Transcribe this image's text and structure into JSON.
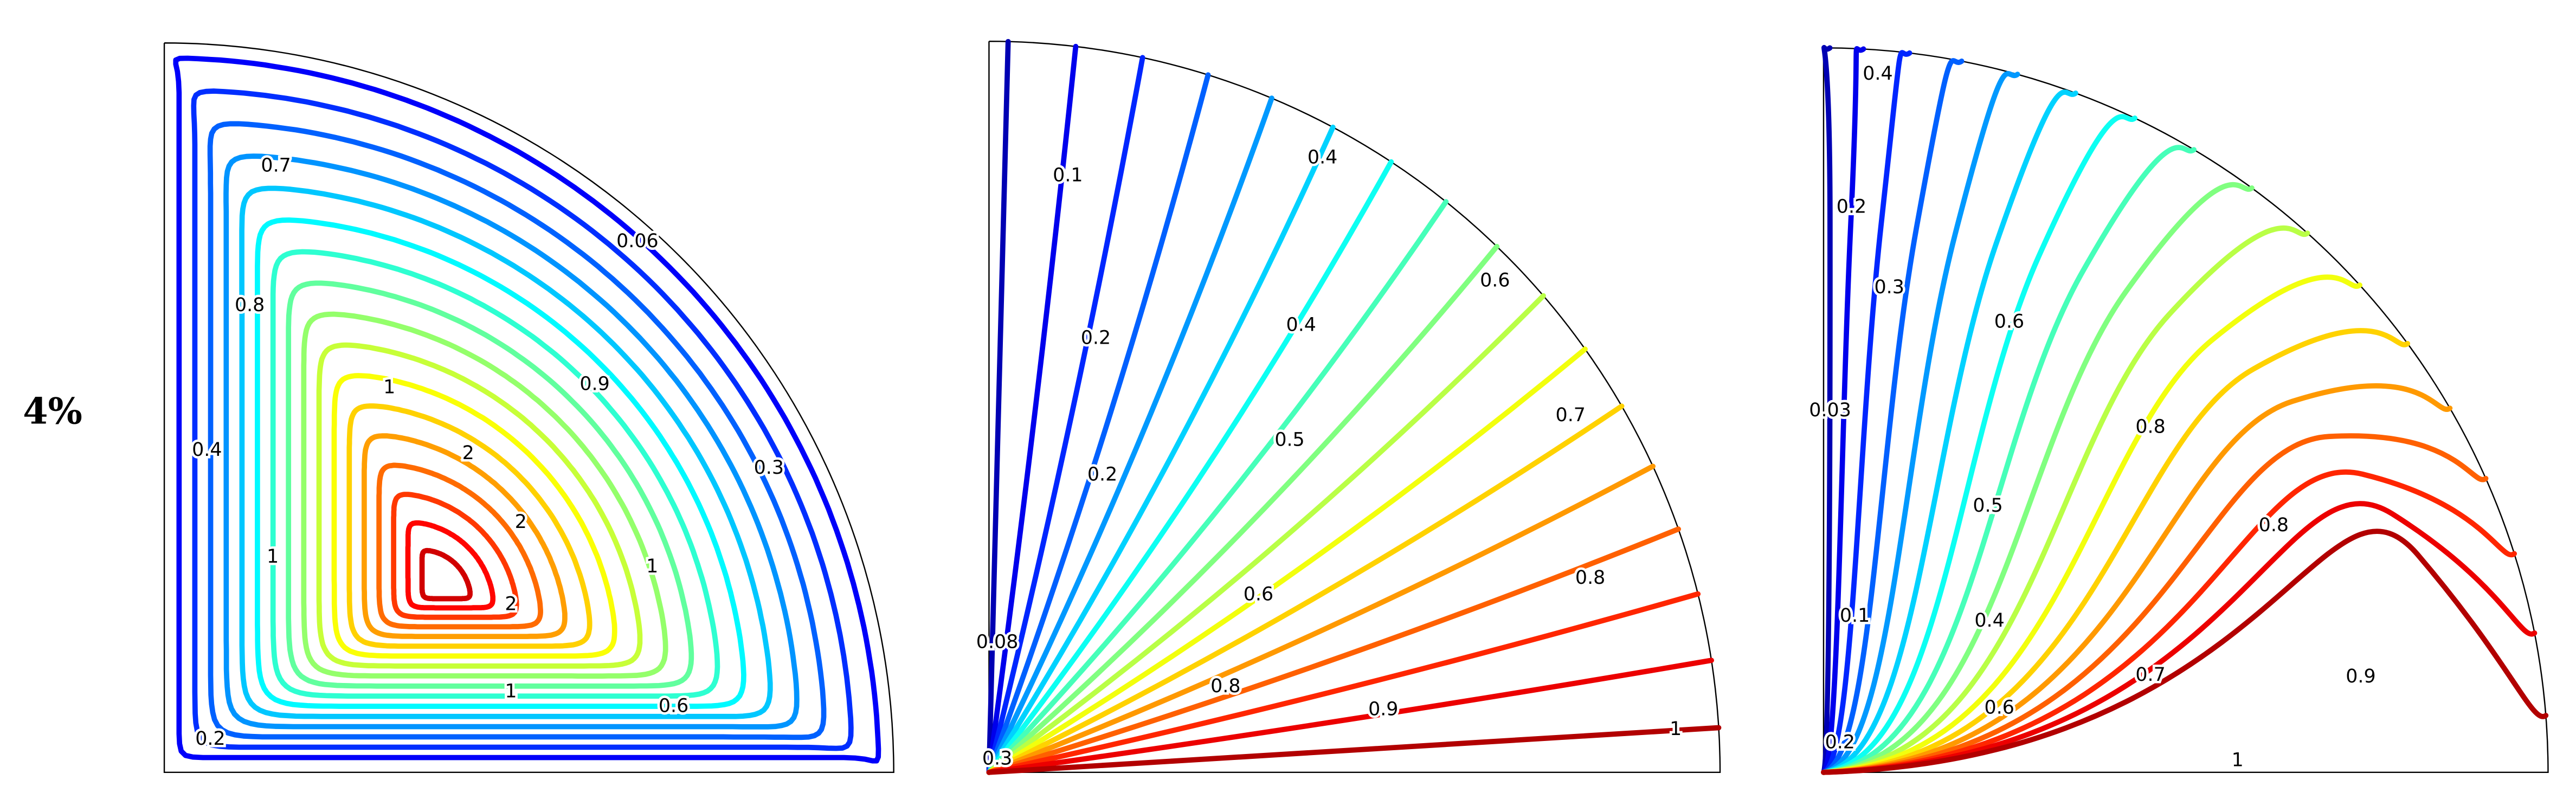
{
  "row_label": "4%",
  "panels": [
    {
      "contour_labels": [
        "0.7",
        "0.06",
        "0.8",
        "1",
        "0.9",
        "2",
        "0.4",
        "0.3",
        "2",
        "1",
        "1",
        "2",
        "1",
        "0.6",
        "0.2"
      ]
    },
    {
      "contour_labels": [
        "0.1",
        "0.4",
        "0.4",
        "0.6",
        "0.2",
        "0.7",
        "0.5",
        "0.2",
        "0.8",
        "0.6",
        "0.08",
        "0.8",
        "0.9",
        "1",
        "0.3"
      ]
    },
    {
      "contour_labels": [
        "0.4",
        "0.2",
        "0.3",
        "0.6",
        "0.03",
        "0.8",
        "0.5",
        "0.8",
        "0.1",
        "0.4",
        "0.7",
        "0.9",
        "0.6",
        "0.2",
        "1"
      ]
    }
  ]
}
